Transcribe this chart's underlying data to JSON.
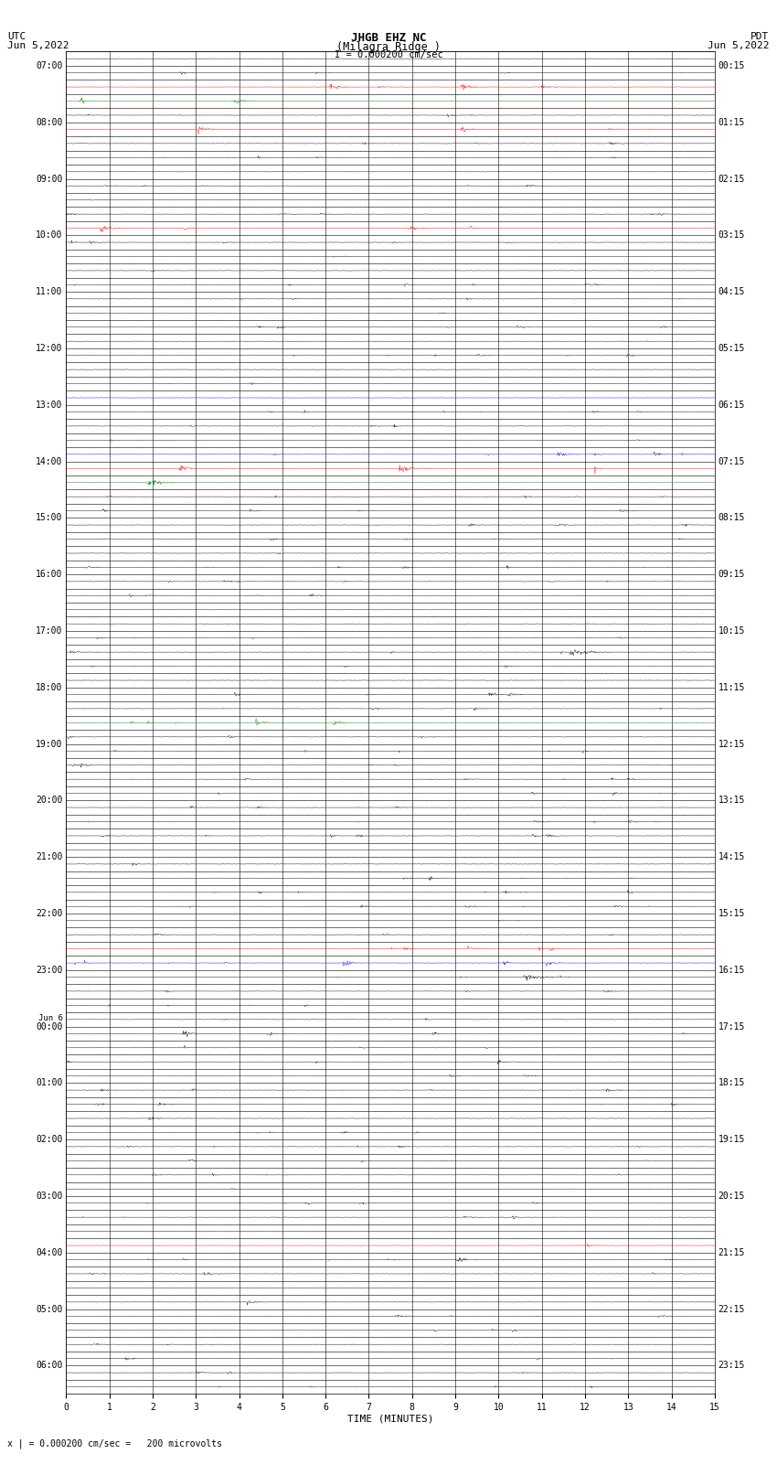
{
  "title_line1": "JHGB EHZ NC",
  "title_line2": "(Milagra Ridge )",
  "title_line3": "I = 0.000200 cm/sec",
  "left_label_top": "UTC",
  "left_label_date": "Jun 5,2022",
  "right_label_top": "PDT",
  "right_label_date": "Jun 5,2022",
  "xlabel": "TIME (MINUTES)",
  "footer": "x | = 0.000200 cm/sec =   200 microvolts",
  "left_times": [
    "07:00",
    "",
    "",
    "",
    "08:00",
    "",
    "",
    "",
    "09:00",
    "",
    "",
    "",
    "10:00",
    "",
    "",
    "",
    "11:00",
    "",
    "",
    "",
    "12:00",
    "",
    "",
    "",
    "13:00",
    "",
    "",
    "",
    "14:00",
    "",
    "",
    "",
    "15:00",
    "",
    "",
    "",
    "16:00",
    "",
    "",
    "",
    "17:00",
    "",
    "",
    "",
    "18:00",
    "",
    "",
    "",
    "19:00",
    "",
    "",
    "",
    "20:00",
    "",
    "",
    "",
    "21:00",
    "",
    "",
    "",
    "22:00",
    "",
    "",
    "",
    "23:00",
    "",
    "",
    "",
    "Jun 6\n00:00",
    "",
    "",
    "",
    "01:00",
    "",
    "",
    "",
    "02:00",
    "",
    "",
    "",
    "03:00",
    "",
    "",
    "",
    "04:00",
    "",
    "",
    "",
    "05:00",
    "",
    "",
    "",
    "06:00",
    "",
    ""
  ],
  "right_times": [
    "00:15",
    "",
    "",
    "",
    "01:15",
    "",
    "",
    "",
    "02:15",
    "",
    "",
    "",
    "03:15",
    "",
    "",
    "",
    "04:15",
    "",
    "",
    "",
    "05:15",
    "",
    "",
    "",
    "06:15",
    "",
    "",
    "",
    "07:15",
    "",
    "",
    "",
    "08:15",
    "",
    "",
    "",
    "09:15",
    "",
    "",
    "",
    "10:15",
    "",
    "",
    "",
    "11:15",
    "",
    "",
    "",
    "12:15",
    "",
    "",
    "",
    "13:15",
    "",
    "",
    "",
    "14:15",
    "",
    "",
    "",
    "15:15",
    "",
    "",
    "",
    "16:15",
    "",
    "",
    "",
    "17:15",
    "",
    "",
    "",
    "18:15",
    "",
    "",
    "",
    "19:15",
    "",
    "",
    "",
    "20:15",
    "",
    "",
    "",
    "21:15",
    "",
    "",
    "",
    "22:15",
    "",
    "",
    "",
    "23:15",
    "",
    ""
  ],
  "num_rows": 95,
  "bg_color": "#ffffff",
  "grid_color": "#000000",
  "x_ticks": [
    0,
    1,
    2,
    3,
    4,
    5,
    6,
    7,
    8,
    9,
    10,
    11,
    12,
    13,
    14,
    15
  ],
  "special_rows": {
    "92": "red",
    "91": "green",
    "89": "red",
    "82": "red",
    "70": "blue",
    "66": "blue",
    "65": "red",
    "64": "green",
    "47": "green",
    "31": "red",
    "30": "blue",
    "10": "red"
  }
}
